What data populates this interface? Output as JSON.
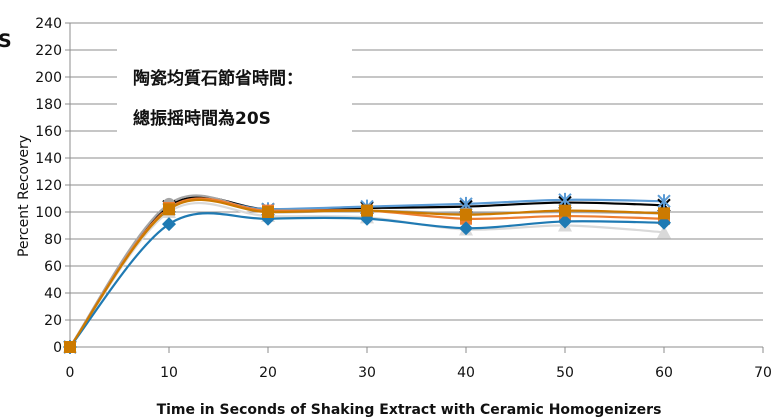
{
  "chart_data": {
    "type": "line",
    "title_fragment": "S",
    "annotations": [
      "陶瓷均質石節省時間：",
      "總振摇時間為20S"
    ],
    "xlabel": "Time in Seconds of Shaking Extract with Ceramic Homogenizers",
    "ylabel": "Percent Recovery",
    "xlim": [
      0,
      70
    ],
    "ylim": [
      0,
      240
    ],
    "x_ticks": [
      0,
      10,
      20,
      30,
      40,
      50,
      60,
      70
    ],
    "y_ticks": [
      0,
      20,
      40,
      60,
      80,
      100,
      120,
      140,
      160,
      180,
      200,
      220,
      240
    ],
    "grid": "horizontal",
    "smooth": true,
    "x": [
      0,
      10,
      20,
      30,
      40,
      50,
      60
    ],
    "series": [
      {
        "color": "#000000",
        "marker": "x",
        "values": [
          0,
          104,
          102,
          103,
          104,
          107,
          105
        ]
      },
      {
        "color": "#5b9bd5",
        "marker": "asterisk",
        "values": [
          0,
          102,
          102,
          104,
          106,
          109,
          108
        ]
      },
      {
        "color": "#a5a5a5",
        "marker": "circle",
        "values": [
          0,
          106,
          100,
          101,
          99,
          100,
          99
        ]
      },
      {
        "color": "#ed7d31",
        "marker": "square",
        "values": [
          0,
          103,
          101,
          101,
          95,
          97,
          95
        ]
      },
      {
        "color": "#d9d9d9",
        "marker": "triangle",
        "values": [
          0,
          100,
          97,
          96,
          87,
          90,
          85
        ]
      },
      {
        "color": "#1f7ab3",
        "marker": "diamond",
        "values": [
          0,
          91,
          95,
          95,
          88,
          93,
          92
        ]
      },
      {
        "color": "#cc7a00",
        "marker": "square",
        "values": [
          0,
          102,
          100,
          101,
          98,
          101,
          99
        ]
      }
    ]
  }
}
